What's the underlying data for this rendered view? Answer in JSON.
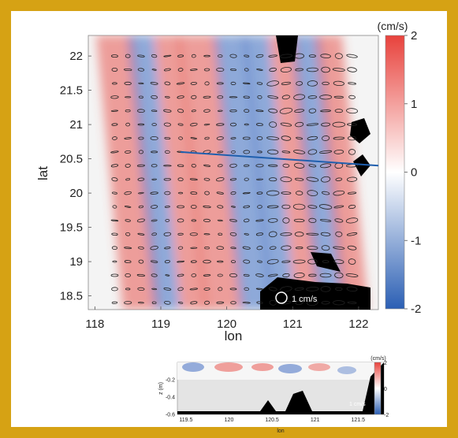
{
  "chart_data": [
    {
      "type": "heatmap",
      "title": "",
      "xlabel": "lon",
      "ylabel": "lat",
      "xlim": [
        117.9,
        122.3
      ],
      "ylim": [
        18.3,
        22.3
      ],
      "x_ticks": [
        "118",
        "119",
        "120",
        "121",
        "122"
      ],
      "y_ticks": [
        "18.5",
        "19",
        "19.5",
        "20",
        "20.5",
        "21",
        "21.5",
        "22"
      ],
      "colorbar": {
        "label": "(cm/s)",
        "ticks": [
          "2",
          "1",
          "0",
          "-1",
          "-2"
        ],
        "range": [
          -2,
          2
        ],
        "colors": [
          "#2b5fb4",
          "#ffffff",
          "#e8423c"
        ]
      },
      "bands": [
        {
          "lon": 118.45,
          "sign": 1,
          "width": 0.28
        },
        {
          "lon": 118.85,
          "sign": -1,
          "width": 0.2
        },
        {
          "lon": 119.25,
          "sign": 1,
          "width": 0.2
        },
        {
          "lon": 119.7,
          "sign": 1,
          "width": 0.3
        },
        {
          "lon": 120.2,
          "sign": -1,
          "width": 0.25
        },
        {
          "lon": 120.6,
          "sign": -1,
          "width": 0.2
        },
        {
          "lon": 121.0,
          "sign": 1,
          "width": 0.2
        },
        {
          "lon": 121.35,
          "sign": -1,
          "width": 0.22
        },
        {
          "lon": 121.7,
          "sign": 1,
          "width": 0.2
        }
      ],
      "section_line": {
        "lon": [
          119.3,
          122.3
        ],
        "lat": [
          20.6,
          20.4
        ]
      },
      "scale_label": "1 cm/s"
    },
    {
      "type": "heatmap",
      "title": "",
      "xlabel": "lon",
      "ylabel": "z (m)",
      "xlim": [
        119.4,
        121.8
      ],
      "ylim": [
        -0.6,
        0.0
      ],
      "x_ticks": [
        "119.5",
        "120",
        "120.5",
        "121",
        "121.5"
      ],
      "y_ticks": [
        "-0.2",
        "-0.4",
        "-0.6"
      ],
      "colorbar": {
        "label": "(cm/s)",
        "ticks": [
          "2",
          "0",
          "-2"
        ]
      },
      "scale_label": "1 cm/s"
    }
  ]
}
